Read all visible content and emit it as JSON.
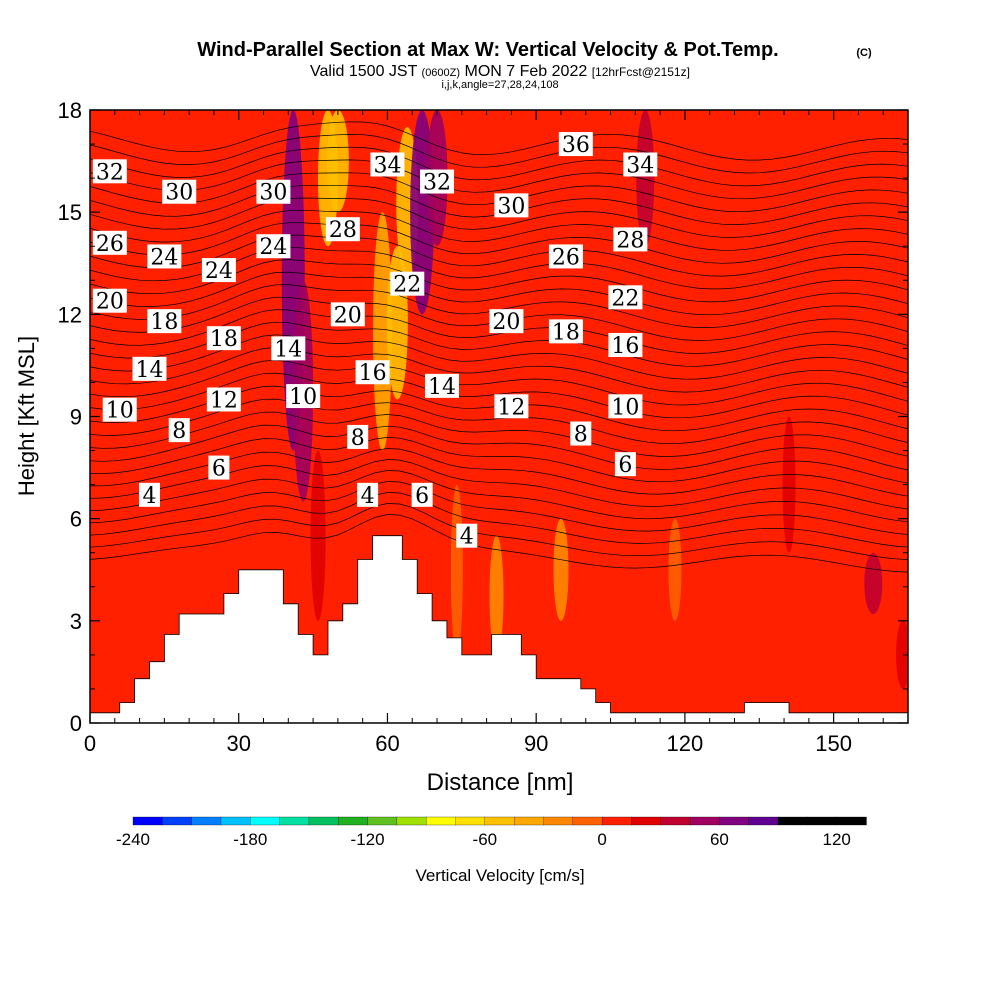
{
  "title": {
    "main": "Wind-Parallel Section at Max W: Vertical Velocity & Pot.Temp.",
    "copyright": "(C)",
    "valid_prefix": "Valid 1500 JST",
    "valid_utc": "(0600Z)",
    "valid_date": "MON 7 Feb 2022",
    "forecast": "[12hrFcst@2151z]",
    "indices": "i,j,k,angle=27,28,24,108"
  },
  "chart_data": {
    "type": "heatmap",
    "xlabel": "Distance [nm]",
    "ylabel": "Height [Kft MSL]",
    "xlim": [
      0,
      165
    ],
    "ylim": [
      0,
      18
    ],
    "x_ticks": [
      0,
      30,
      60,
      90,
      120,
      150
    ],
    "y_ticks": [
      0,
      3,
      6,
      9,
      12,
      15,
      18
    ],
    "colorbar": {
      "label": "Vertical Velocity [cm/s]",
      "min": -240,
      "max": 135,
      "step": 15,
      "tick_values": [
        -240,
        -180,
        -120,
        -60,
        0,
        60,
        120
      ],
      "colors": [
        "#0000ff",
        "#0040ff",
        "#0080ff",
        "#00c0ff",
        "#00ffff",
        "#00e0a0",
        "#00c060",
        "#20b020",
        "#60c020",
        "#a0e000",
        "#ffff00",
        "#ffe000",
        "#ffc000",
        "#ffa800",
        "#ff8800",
        "#ff6000",
        "#ff2000",
        "#e00000",
        "#c00030",
        "#a00060",
        "#800080",
        "#600090"
      ]
    },
    "background_value": 3,
    "velocity_features": [
      {
        "x": 41,
        "y0": 8,
        "y1": 18,
        "value": 65
      },
      {
        "x": 43,
        "y0": 6.5,
        "y1": 13,
        "value": 50
      },
      {
        "x": 46,
        "y0": 3,
        "y1": 8,
        "value": 25
      },
      {
        "x": 48,
        "y0": 14,
        "y1": 18,
        "value": -50
      },
      {
        "x": 50,
        "y0": 15,
        "y1": 18,
        "value": -60
      },
      {
        "x": 59,
        "y0": 8,
        "y1": 15,
        "value": -45
      },
      {
        "x": 62,
        "y0": 9.5,
        "y1": 14,
        "value": -55
      },
      {
        "x": 64,
        "y0": 13,
        "y1": 17.5,
        "value": -60
      },
      {
        "x": 67,
        "y0": 12,
        "y1": 18,
        "value": 70
      },
      {
        "x": 70,
        "y0": 14,
        "y1": 18,
        "value": 55
      },
      {
        "x": 74,
        "y0": 2,
        "y1": 7,
        "value": -10
      },
      {
        "x": 82,
        "y0": 2,
        "y1": 5.5,
        "value": -20
      },
      {
        "x": 95,
        "y0": 3,
        "y1": 6,
        "value": -25
      },
      {
        "x": 112,
        "y0": 14,
        "y1": 18,
        "value": 40
      },
      {
        "x": 118,
        "y0": 3,
        "y1": 6,
        "value": -15
      },
      {
        "x": 141,
        "y0": 5,
        "y1": 9,
        "value": 15
      },
      {
        "x": 158,
        "y0": 3.2,
        "y1": 5,
        "value": 40
      },
      {
        "x": 164,
        "y0": 1,
        "y1": 3,
        "value": 20
      }
    ],
    "terrain": [
      [
        0,
        0.3
      ],
      [
        6,
        0.3
      ],
      [
        6,
        0.6
      ],
      [
        9,
        0.6
      ],
      [
        9,
        1.3
      ],
      [
        12,
        1.3
      ],
      [
        12,
        1.8
      ],
      [
        15,
        1.8
      ],
      [
        15,
        2.6
      ],
      [
        18,
        2.6
      ],
      [
        18,
        3.2
      ],
      [
        27,
        3.2
      ],
      [
        27,
        3.8
      ],
      [
        30,
        3.8
      ],
      [
        30,
        4.5
      ],
      [
        39,
        4.5
      ],
      [
        39,
        3.5
      ],
      [
        42,
        3.5
      ],
      [
        42,
        2.6
      ],
      [
        45,
        2.6
      ],
      [
        45,
        2.0
      ],
      [
        48,
        2.0
      ],
      [
        48,
        3.0
      ],
      [
        51,
        3.0
      ],
      [
        51,
        3.5
      ],
      [
        54,
        3.5
      ],
      [
        54,
        4.8
      ],
      [
        57,
        4.8
      ],
      [
        57,
        5.5
      ],
      [
        63,
        5.5
      ],
      [
        63,
        4.8
      ],
      [
        66,
        4.8
      ],
      [
        66,
        3.8
      ],
      [
        69,
        3.8
      ],
      [
        69,
        3.0
      ],
      [
        72,
        3.0
      ],
      [
        72,
        2.5
      ],
      [
        75,
        2.5
      ],
      [
        75,
        2.0
      ],
      [
        81,
        2.0
      ],
      [
        81,
        2.6
      ],
      [
        87,
        2.6
      ],
      [
        87,
        2.0
      ],
      [
        90,
        2.0
      ],
      [
        90,
        1.3
      ],
      [
        99,
        1.3
      ],
      [
        99,
        1.0
      ],
      [
        102,
        1.0
      ],
      [
        102,
        0.6
      ],
      [
        105,
        0.6
      ],
      [
        105,
        0.3
      ],
      [
        123,
        0.3
      ],
      [
        123,
        0.3
      ],
      [
        132,
        0.3
      ],
      [
        132,
        0.6
      ],
      [
        141,
        0.6
      ],
      [
        141,
        0.3
      ],
      [
        165,
        0.3
      ]
    ],
    "theta": {
      "base_level": 4,
      "step": 1,
      "levels_count": 33,
      "params": {
        "y0": 5.0,
        "dy": 0.38,
        "mountain_amp": 1.8,
        "tilt": 0.35
      }
    },
    "theta_labels": [
      {
        "text": "32",
        "x": 4,
        "y": 16.2
      },
      {
        "text": "30",
        "x": 18,
        "y": 15.6
      },
      {
        "text": "26",
        "x": 4,
        "y": 14.1
      },
      {
        "text": "24",
        "x": 15,
        "y": 13.7
      },
      {
        "text": "24",
        "x": 26,
        "y": 13.3
      },
      {
        "text": "20",
        "x": 4,
        "y": 12.4
      },
      {
        "text": "18",
        "x": 15,
        "y": 11.8
      },
      {
        "text": "18",
        "x": 27,
        "y": 11.3
      },
      {
        "text": "14",
        "x": 12,
        "y": 10.4
      },
      {
        "text": "12",
        "x": 27,
        "y": 9.5
      },
      {
        "text": "10",
        "x": 6,
        "y": 9.2
      },
      {
        "text": "8",
        "x": 18,
        "y": 8.6
      },
      {
        "text": "6",
        "x": 26,
        "y": 7.5
      },
      {
        "text": "4",
        "x": 12,
        "y": 6.7
      },
      {
        "text": "30",
        "x": 37,
        "y": 15.6
      },
      {
        "text": "24",
        "x": 37,
        "y": 14.0
      },
      {
        "text": "14",
        "x": 40,
        "y": 11.0
      },
      {
        "text": "10",
        "x": 43,
        "y": 9.6
      },
      {
        "text": "34",
        "x": 60,
        "y": 16.4
      },
      {
        "text": "28",
        "x": 51,
        "y": 14.5
      },
      {
        "text": "20",
        "x": 52,
        "y": 12.0
      },
      {
        "text": "16",
        "x": 57,
        "y": 10.3
      },
      {
        "text": "8",
        "x": 54,
        "y": 8.4
      },
      {
        "text": "4",
        "x": 56,
        "y": 6.7
      },
      {
        "text": "6",
        "x": 67,
        "y": 6.7
      },
      {
        "text": "32",
        "x": 70,
        "y": 15.9
      },
      {
        "text": "22",
        "x": 64,
        "y": 12.9
      },
      {
        "text": "14",
        "x": 71,
        "y": 9.9
      },
      {
        "text": "4",
        "x": 76,
        "y": 5.5
      },
      {
        "text": "30",
        "x": 85,
        "y": 15.2
      },
      {
        "text": "20",
        "x": 84,
        "y": 11.8
      },
      {
        "text": "12",
        "x": 85,
        "y": 9.3
      },
      {
        "text": "36",
        "x": 98,
        "y": 17.0
      },
      {
        "text": "26",
        "x": 96,
        "y": 13.7
      },
      {
        "text": "18",
        "x": 96,
        "y": 11.5
      },
      {
        "text": "8",
        "x": 99,
        "y": 8.5
      },
      {
        "text": "34",
        "x": 111,
        "y": 16.4
      },
      {
        "text": "28",
        "x": 109,
        "y": 14.2
      },
      {
        "text": "22",
        "x": 108,
        "y": 12.5
      },
      {
        "text": "16",
        "x": 108,
        "y": 11.1
      },
      {
        "text": "10",
        "x": 108,
        "y": 9.3
      },
      {
        "text": "6",
        "x": 108,
        "y": 7.6
      }
    ]
  }
}
